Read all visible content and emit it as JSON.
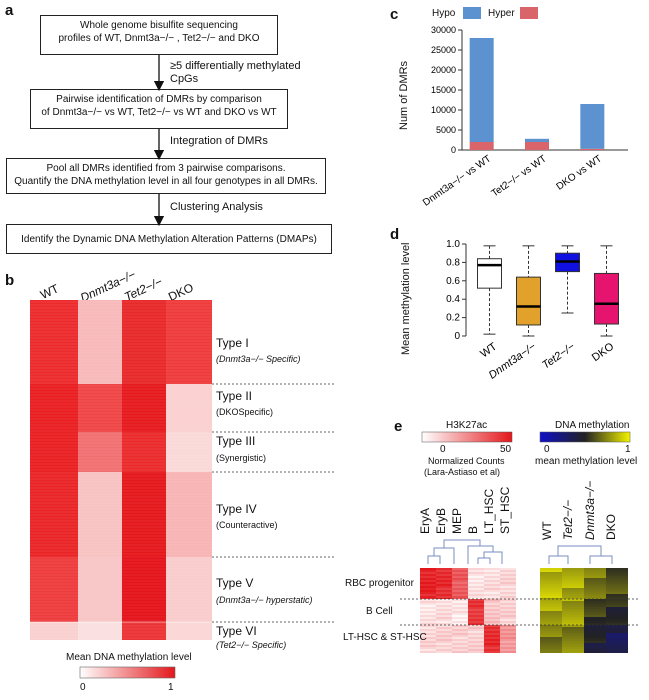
{
  "panel_a": {
    "label": "a",
    "box1_line1": "Whole genome bisulfite sequencing",
    "box1_line2": "profiles of WT, Dnmt3a−/− , Tet2−/− and DKO",
    "step1_line1": "≥5 differentially methylated",
    "step1_line2": "CpGs",
    "box2_line1": "Pairwise identification of DMRs by comparison",
    "box2_line2": "of  Dnmt3a−/− vs WT,   Tet2−/− vs WT and  DKO vs WT",
    "step2": "Integration of DMRs",
    "box3_line1": "Pool all DMRs identified from 3 pairwise comparisons.",
    "box3_line2": "Quantify the DNA methylation level in all four genotypes in all DMRs.",
    "step3": "Clustering Analysis",
    "box4": "Identify the Dynamic DNA Methylation Alteration Patterns (DMAPs)"
  },
  "panel_b": {
    "label": "b",
    "columns": [
      "WT",
      "Dnmt3a−/−",
      "Tet2−/−",
      "DKO"
    ],
    "types": [
      {
        "name": "Type I",
        "desc": "(Dnmt3a−/− Specific)"
      },
      {
        "name": "Type II",
        "desc": "(DKOSpecific)"
      },
      {
        "name": "Type III",
        "desc": "(Synergistic)"
      },
      {
        "name": "Type IV",
        "desc": "(Counteractive)"
      },
      {
        "name": "Type V",
        "desc": "(Dnmt3a−/− hyperstatic)"
      },
      {
        "name": "Type VI",
        "desc": "(Tet2−/− Specific)"
      }
    ],
    "legend_title": "Mean DNA methylation level",
    "legend_min": "0",
    "legend_max": "1",
    "low_color": "#ffffff",
    "high_color": "#e3171b"
  },
  "chart_data": [
    {
      "panel": "c",
      "type": "bar",
      "stacked": true,
      "ylabel": "Num of DMRs",
      "ylim": [
        0,
        30000
      ],
      "yticks": [
        0,
        5000,
        10000,
        15000,
        20000,
        25000,
        30000
      ],
      "categories": [
        "Dnmt3a−/− vs WT",
        "Tet2−/− vs WT",
        "DKO vs WT"
      ],
      "series": [
        {
          "name": "Hyper",
          "color": "#d9646a",
          "values": [
            2000,
            2000,
            300
          ]
        },
        {
          "name": "Hypo",
          "color": "#5b92cf",
          "values": [
            26000,
            800,
            11200
          ]
        }
      ],
      "legend": "top"
    },
    {
      "panel": "d",
      "type": "box",
      "ylabel": "Mean methylation level",
      "ylim": [
        0,
        1
      ],
      "yticks": [
        "0",
        "0.2",
        "0.4",
        "0.6",
        "0.8",
        "1.0"
      ],
      "categories": [
        "WT",
        "Dnmt3a−/−",
        "Tet2−/−",
        "DKO"
      ],
      "boxes": [
        {
          "min": 0.02,
          "q1": 0.52,
          "median": 0.77,
          "q3": 0.84,
          "max": 0.98,
          "color": "#ffffff"
        },
        {
          "min": 0.0,
          "q1": 0.12,
          "median": 0.32,
          "q3": 0.64,
          "max": 0.98,
          "color": "#e2a12b"
        },
        {
          "min": 0.25,
          "q1": 0.7,
          "median": 0.81,
          "q3": 0.9,
          "max": 0.98,
          "color": "#1010e0"
        },
        {
          "min": 0.0,
          "q1": 0.13,
          "median": 0.35,
          "q3": 0.68,
          "max": 0.98,
          "color": "#e6146e"
        }
      ]
    }
  ],
  "panel_c": {
    "label": "c",
    "legend_hypo": "Hypo",
    "legend_hyper": "Hyper"
  },
  "panel_d": {
    "label": "d"
  },
  "panel_e": {
    "label": "e",
    "h3k_title": "H3K27ac",
    "h3k_min": "0",
    "h3k_max": "50",
    "h3k_note1": "Normalized Counts",
    "h3k_note2": "(Lara-Astiaso et al)",
    "meth_title": "DNA methylation",
    "meth_min": "0",
    "meth_max": "1",
    "meth_note": "mean methylation level",
    "cell_columns": [
      "EryA",
      "EryB",
      "MEP",
      "B",
      "LT_HSC",
      "ST_HSC"
    ],
    "geno_columns": [
      "WT",
      "Tet2−/−",
      "Dnmt3a−/−",
      "DKO"
    ],
    "rows": [
      "RBC progenitor",
      "B Cell",
      "LT-HSC & ST-HSC"
    ]
  }
}
